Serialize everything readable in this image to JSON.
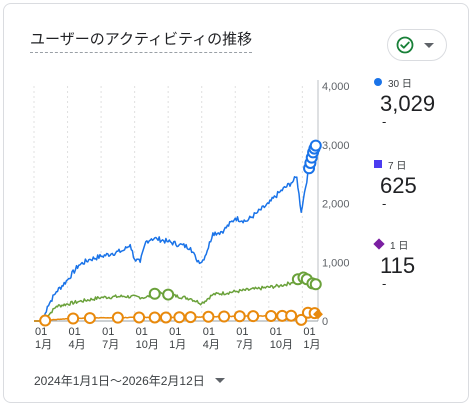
{
  "card": {
    "title": "ユーザーのアクティビティの推移",
    "compare_icon": "check-circle-icon",
    "dropdown_icon": "chevron-down-icon"
  },
  "legend": [
    {
      "label": "30 日",
      "value": "3,029",
      "delta": "-",
      "color": "#1a73e8",
      "shape": "circle"
    },
    {
      "label": "7 日",
      "value": "625",
      "delta": "-",
      "color": "#4b3cf0",
      "shape": "square"
    },
    {
      "label": "1 日",
      "value": "115",
      "delta": "-",
      "color": "#7b1fa2",
      "shape": "diamond"
    }
  ],
  "date_range": {
    "label": "2024年1月1日～2026年2月12日"
  },
  "colors": {
    "series_30d": "#1a73e8",
    "series_7d": "#6aa13a",
    "series_1d": "#e8890c",
    "grid": "#e0e0e0"
  },
  "chart_data": {
    "type": "line",
    "y_axis": {
      "position": "right",
      "ylim": [
        0,
        4000
      ],
      "ticks": [
        "4,000",
        "3,000",
        "2,000",
        "1,000",
        "0"
      ]
    },
    "x_tick_labels": [
      {
        "day": "01",
        "month": "1月"
      },
      {
        "day": "01",
        "month": "4月"
      },
      {
        "day": "01",
        "month": "7月"
      },
      {
        "day": "01",
        "month": "10月"
      },
      {
        "day": "01",
        "month": "1月"
      },
      {
        "day": "01",
        "month": "4月"
      },
      {
        "day": "01",
        "month": "7月"
      },
      {
        "day": "01",
        "month": "10月"
      },
      {
        "day": "01",
        "month": "1月"
      }
    ],
    "x_tick_positions": [
      0,
      3,
      6,
      9,
      12,
      15,
      18,
      21,
      24
    ],
    "xlim": [
      0,
      25.4
    ],
    "grid": "vertical-dashed",
    "series": [
      {
        "key": "30d",
        "color": "#1a73e8",
        "x": [
          0,
          0.8,
          1.2,
          2,
          3,
          4,
          5,
          6,
          7,
          8,
          8.6,
          9,
          9.5,
          10,
          10.5,
          11,
          12,
          13,
          14,
          14.5,
          15,
          15.5,
          16,
          16.5,
          17,
          18,
          19,
          20,
          21,
          22,
          23,
          23.5,
          23.9,
          24.2,
          24.6,
          25,
          25.3
        ],
        "y": [
          0,
          0,
          250,
          500,
          700,
          950,
          1050,
          1100,
          1150,
          1200,
          1300,
          1050,
          1000,
          1350,
          1400,
          1400,
          1350,
          1300,
          1250,
          1050,
          1000,
          1200,
          1500,
          1500,
          1550,
          1750,
          1700,
          1850,
          2000,
          2200,
          2350,
          2450,
          1850,
          2200,
          2600,
          2900,
          3029
        ],
        "markers_from_x": 24.6
      },
      {
        "key": "7d",
        "color": "#6aa13a",
        "x": [
          0,
          0.8,
          1.2,
          2,
          4,
          6,
          8,
          10,
          11,
          12,
          14,
          15,
          16,
          18,
          20,
          22,
          23,
          23.5,
          24,
          24.5,
          25
        ],
        "y": [
          0,
          0,
          80,
          250,
          330,
          400,
          420,
          400,
          480,
          450,
          380,
          300,
          450,
          500,
          550,
          600,
          650,
          700,
          750,
          700,
          625
        ],
        "markers_at_x": [
          10.8,
          12,
          23.6,
          24.1,
          24.4,
          24.9,
          25.2
        ]
      },
      {
        "key": "1d",
        "color": "#e8890c",
        "x": [
          0,
          0.8,
          1.2,
          3,
          6,
          9,
          12,
          15,
          18,
          21,
          23,
          23.9,
          24.2,
          24.6,
          25,
          25.4
        ],
        "y": [
          0,
          0,
          15,
          40,
          55,
          60,
          60,
          70,
          80,
          85,
          90,
          20,
          115,
          150,
          140,
          115
        ],
        "markers_at_x": [
          1.0,
          3.5,
          5.0,
          7.5,
          9.4,
          10.8,
          11.8,
          13.0,
          14.0,
          15.6,
          17.0,
          18.4,
          19.6,
          21.2,
          22.2,
          23.0,
          23.9,
          24.5,
          25.1
        ]
      }
    ]
  }
}
